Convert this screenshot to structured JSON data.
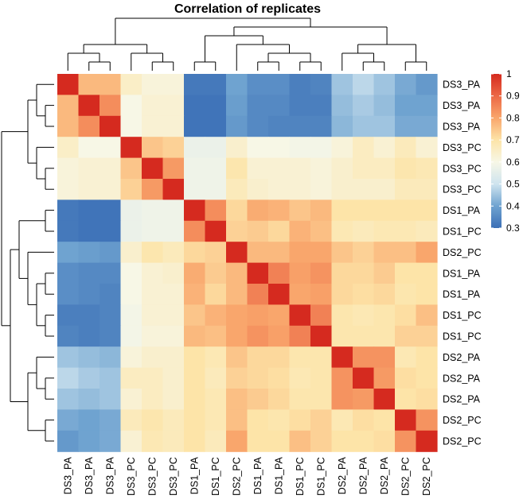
{
  "chart_data": {
    "type": "heatmap",
    "title": "Correlation of replicates",
    "row_labels": [
      "DS3_PA",
      "DS3_PA",
      "DS3_PA",
      "DS3_PC",
      "DS3_PC",
      "DS3_PC",
      "DS1_PA",
      "DS1_PC",
      "DS2_PC",
      "DS1_PA",
      "DS1_PA",
      "DS1_PC",
      "DS1_PC",
      "DS2_PA",
      "DS2_PA",
      "DS2_PA",
      "DS2_PC",
      "DS2_PC"
    ],
    "col_labels": [
      "DS3_PA",
      "DS3_PA",
      "DS3_PA",
      "DS3_PC",
      "DS3_PC",
      "DS3_PC",
      "DS1_PA",
      "DS1_PC",
      "DS2_PC",
      "DS1_PA",
      "DS1_PA",
      "DS1_PC",
      "DS1_PC",
      "DS2_PA",
      "DS2_PA",
      "DS2_PA",
      "DS2_PC",
      "DS2_PC"
    ],
    "values": [
      [
        1.0,
        0.77,
        0.77,
        0.65,
        0.62,
        0.62,
        0.32,
        0.32,
        0.4,
        0.36,
        0.36,
        0.33,
        0.34,
        0.45,
        0.48,
        0.45,
        0.41,
        0.38
      ],
      [
        0.77,
        1.0,
        0.84,
        0.6,
        0.63,
        0.63,
        0.31,
        0.31,
        0.39,
        0.35,
        0.35,
        0.33,
        0.33,
        0.44,
        0.46,
        0.44,
        0.4,
        0.4
      ],
      [
        0.77,
        0.84,
        1.0,
        0.6,
        0.63,
        0.63,
        0.31,
        0.31,
        0.38,
        0.35,
        0.34,
        0.34,
        0.34,
        0.43,
        0.45,
        0.45,
        0.41,
        0.41
      ],
      [
        0.65,
        0.6,
        0.6,
        1.0,
        0.75,
        0.73,
        0.57,
        0.57,
        0.64,
        0.6,
        0.6,
        0.59,
        0.59,
        0.62,
        0.66,
        0.63,
        0.67,
        0.63
      ],
      [
        0.62,
        0.63,
        0.63,
        0.75,
        1.0,
        0.82,
        0.58,
        0.58,
        0.69,
        0.63,
        0.63,
        0.63,
        0.62,
        0.64,
        0.66,
        0.66,
        0.69,
        0.68
      ],
      [
        0.62,
        0.63,
        0.63,
        0.73,
        0.82,
        1.0,
        0.58,
        0.58,
        0.67,
        0.64,
        0.63,
        0.63,
        0.62,
        0.64,
        0.64,
        0.64,
        0.67,
        0.67
      ],
      [
        0.32,
        0.31,
        0.31,
        0.57,
        0.58,
        0.58,
        1.0,
        0.84,
        0.72,
        0.79,
        0.78,
        0.75,
        0.77,
        0.7,
        0.7,
        0.7,
        0.7,
        0.7
      ],
      [
        0.32,
        0.31,
        0.31,
        0.57,
        0.58,
        0.58,
        0.84,
        1.0,
        0.73,
        0.74,
        0.72,
        0.78,
        0.76,
        0.68,
        0.67,
        0.68,
        0.68,
        0.67
      ],
      [
        0.4,
        0.39,
        0.38,
        0.64,
        0.69,
        0.67,
        0.72,
        0.73,
        1.0,
        0.77,
        0.77,
        0.8,
        0.8,
        0.75,
        0.73,
        0.76,
        0.76,
        0.8
      ],
      [
        0.36,
        0.35,
        0.35,
        0.6,
        0.63,
        0.64,
        0.79,
        0.74,
        0.77,
        1.0,
        0.86,
        0.81,
        0.83,
        0.72,
        0.72,
        0.74,
        0.7,
        0.7
      ],
      [
        0.36,
        0.35,
        0.34,
        0.6,
        0.63,
        0.63,
        0.78,
        0.72,
        0.77,
        0.86,
        1.0,
        0.8,
        0.81,
        0.72,
        0.71,
        0.72,
        0.69,
        0.7
      ],
      [
        0.33,
        0.33,
        0.34,
        0.59,
        0.63,
        0.63,
        0.75,
        0.78,
        0.8,
        0.81,
        0.8,
        1.0,
        0.86,
        0.69,
        0.68,
        0.69,
        0.71,
        0.76
      ],
      [
        0.34,
        0.33,
        0.34,
        0.59,
        0.62,
        0.62,
        0.77,
        0.76,
        0.8,
        0.83,
        0.81,
        0.86,
        1.0,
        0.69,
        0.69,
        0.69,
        0.73,
        0.73
      ],
      [
        0.45,
        0.44,
        0.43,
        0.62,
        0.64,
        0.64,
        0.7,
        0.68,
        0.75,
        0.72,
        0.72,
        0.69,
        0.69,
        1.0,
        0.83,
        0.83,
        0.68,
        0.7
      ],
      [
        0.48,
        0.46,
        0.45,
        0.66,
        0.66,
        0.64,
        0.7,
        0.67,
        0.73,
        0.72,
        0.71,
        0.68,
        0.69,
        0.83,
        1.0,
        0.82,
        0.71,
        0.7
      ],
      [
        0.45,
        0.44,
        0.45,
        0.63,
        0.66,
        0.64,
        0.7,
        0.68,
        0.76,
        0.74,
        0.72,
        0.69,
        0.69,
        0.83,
        0.82,
        1.0,
        0.7,
        0.71
      ],
      [
        0.41,
        0.4,
        0.41,
        0.67,
        0.69,
        0.67,
        0.7,
        0.68,
        0.76,
        0.7,
        0.69,
        0.71,
        0.73,
        0.68,
        0.71,
        0.7,
        1.0,
        0.83
      ],
      [
        0.38,
        0.4,
        0.41,
        0.63,
        0.68,
        0.67,
        0.7,
        0.67,
        0.8,
        0.7,
        0.7,
        0.76,
        0.73,
        0.7,
        0.7,
        0.71,
        0.83,
        1.0
      ]
    ],
    "color_scale": {
      "min": 0.3,
      "max": 1.0,
      "stops": [
        {
          "value": 0.3,
          "color": "#3b6fb6"
        },
        {
          "value": 0.4,
          "color": "#6fa3d0"
        },
        {
          "value": 0.5,
          "color": "#cfe4ef"
        },
        {
          "value": 0.6,
          "color": "#f7f7e6"
        },
        {
          "value": 0.7,
          "color": "#fde4a8"
        },
        {
          "value": 0.8,
          "color": "#f9a66c"
        },
        {
          "value": 0.9,
          "color": "#ec6845"
        },
        {
          "value": 1.0,
          "color": "#d52a1f"
        }
      ],
      "ticks": [
        "0.3",
        "0.4",
        "0.5",
        "0.6",
        "0.7",
        "0.8",
        "0.9",
        "1"
      ]
    },
    "legend_position": "right",
    "dendrograms": "row-left and column-top",
    "grid": false
  }
}
